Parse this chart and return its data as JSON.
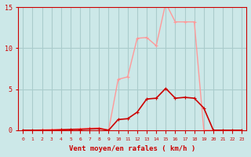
{
  "background_color": "#cce8e8",
  "grid_color": "#aacccc",
  "line1_color": "#ff9999",
  "line2_color": "#cc0000",
  "xlabel": "Vent moyen/en rafales ( km/h )",
  "xlabel_color": "#cc0000",
  "ylabel_color": "#cc0000",
  "tick_color": "#cc0000",
  "x_values": [
    0,
    1,
    2,
    3,
    4,
    5,
    6,
    7,
    8,
    9,
    10,
    11,
    12,
    13,
    14,
    15,
    16,
    17,
    18,
    19,
    20,
    21,
    22,
    23
  ],
  "line1_y": [
    0.0,
    0.0,
    0.05,
    0.1,
    0.1,
    0.1,
    0.2,
    0.25,
    0.3,
    0.0,
    6.2,
    6.5,
    11.2,
    11.3,
    10.3,
    15.5,
    13.2,
    13.2,
    13.2,
    0.0,
    0.0,
    0.0,
    0.0,
    0.0
  ],
  "line2_y": [
    0.0,
    0.0,
    0.0,
    0.0,
    0.05,
    0.1,
    0.1,
    0.15,
    0.2,
    0.0,
    1.3,
    1.4,
    2.2,
    3.8,
    3.9,
    5.1,
    3.9,
    4.0,
    3.9,
    2.7,
    0.0,
    0.0,
    0.0,
    0.0
  ],
  "ylim": [
    0,
    15
  ],
  "yticks": [
    0,
    5,
    10,
    15
  ],
  "xlim": [
    -0.5,
    23.5
  ]
}
